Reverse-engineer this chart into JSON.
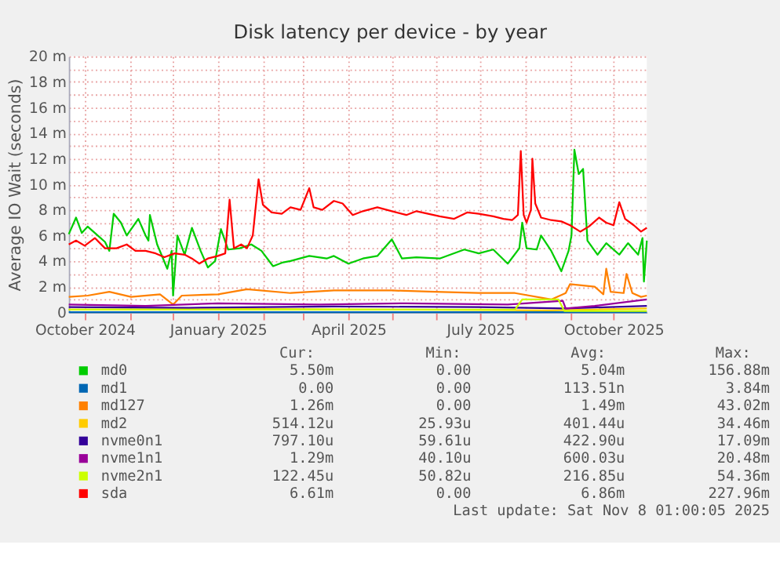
{
  "chart_data": {
    "type": "line",
    "title": "Disk latency per device - by year",
    "ylabel": "Average IO Wait (seconds)",
    "xlim": [
      "2024-09-20",
      "2025-10-24"
    ],
    "ylim": [
      0,
      20
    ],
    "xticks": [
      {
        "value": "2024-10",
        "label": "October 2024"
      },
      {
        "value": "2024-11",
        "label": null
      },
      {
        "value": "2024-12",
        "label": null
      },
      {
        "value": "2025-01",
        "label": "January 2025"
      },
      {
        "value": "2025-02",
        "label": null
      },
      {
        "value": "2025-03",
        "label": null
      },
      {
        "value": "2025-04",
        "label": "April 2025"
      },
      {
        "value": "2025-05",
        "label": null
      },
      {
        "value": "2025-06",
        "label": null
      },
      {
        "value": "2025-07",
        "label": "July 2025"
      },
      {
        "value": "2025-08",
        "label": null
      },
      {
        "value": "2025-09",
        "label": null
      },
      {
        "value": "2025-10",
        "label": "October 2025"
      }
    ],
    "yticks": [
      0,
      {
        "value": 1,
        "label": null
      },
      {
        "value": 2,
        "label": "2 m"
      },
      {
        "value": 3,
        "label": null
      },
      {
        "value": 4,
        "label": "4 m"
      },
      {
        "value": 5,
        "label": null
      },
      {
        "value": 6,
        "label": "6 m"
      },
      {
        "value": 7,
        "label": null
      },
      {
        "value": 8,
        "label": "8 m"
      },
      {
        "value": 9,
        "label": null
      },
      {
        "value": 10,
        "label": "10 m"
      },
      {
        "value": 11,
        "label": null
      },
      {
        "value": 12,
        "label": "12 m"
      },
      {
        "value": 13,
        "label": null
      },
      {
        "value": 14,
        "label": "14 m"
      },
      {
        "value": 15,
        "label": null
      },
      {
        "value": 16,
        "label": "16 m"
      },
      {
        "value": 17,
        "label": null
      },
      {
        "value": 18,
        "label": "18 m"
      },
      {
        "value": 19,
        "label": null
      },
      {
        "value": 20,
        "label": "20 m"
      }
    ],
    "grid": true,
    "legend": "bottom",
    "marker": "none",
    "line_style": "solid",
    "series": [
      {
        "name": "md0",
        "color": "#00cc00",
        "x": [
          "2024-09-20",
          "2024-09-25",
          "2024-09-29",
          "2024-10-03",
          "2024-10-10",
          "2024-10-15",
          "2024-10-18",
          "2024-10-21",
          "2024-10-26",
          "2024-10-30",
          "2024-11-07",
          "2024-11-12",
          "2024-11-14",
          "2024-11-15",
          "2024-11-20",
          "2024-11-27",
          "2024-11-30",
          "2024-12-01",
          "2024-12-04",
          "2024-12-09",
          "2024-12-14",
          "2024-12-20",
          "2024-12-25",
          "2024-12-30",
          "2025-01-03",
          "2025-01-08",
          "2025-01-16",
          "2025-01-24",
          "2025-01-31",
          "2025-02-08",
          "2025-02-15",
          "2025-02-20",
          "2025-03-05",
          "2025-03-17",
          "2025-03-22",
          "2025-04-01",
          "2025-04-11",
          "2025-04-21",
          "2025-05-01",
          "2025-05-08",
          "2025-05-18",
          "2025-06-03",
          "2025-06-20",
          "2025-06-30",
          "2025-07-10",
          "2025-07-20",
          "2025-07-28",
          "2025-07-30",
          "2025-08-02",
          "2025-08-09",
          "2025-08-12",
          "2025-08-19",
          "2025-08-26",
          "2025-08-31",
          "2025-09-02",
          "2025-09-04",
          "2025-09-07",
          "2025-09-10",
          "2025-09-13",
          "2025-09-20",
          "2025-09-26",
          "2025-10-05",
          "2025-10-11",
          "2025-10-18",
          "2025-10-21",
          "2025-10-22",
          "2025-10-24"
        ],
        "values": [
          6.1,
          7.4,
          6.2,
          6.7,
          6.0,
          5.5,
          4.8,
          7.7,
          7.0,
          6.0,
          7.3,
          6.0,
          5.6,
          7.6,
          5.3,
          3.4,
          4.8,
          1.3,
          6.0,
          4.5,
          6.6,
          4.8,
          3.5,
          4.0,
          6.5,
          4.9,
          5.0,
          5.3,
          4.8,
          3.6,
          3.9,
          4.0,
          4.4,
          4.2,
          4.4,
          3.8,
          4.2,
          4.4,
          5.7,
          4.2,
          4.3,
          4.2,
          4.9,
          4.6,
          4.9,
          3.8,
          5.0,
          7.0,
          5.0,
          4.9,
          6.0,
          4.8,
          3.2,
          4.8,
          6.0,
          12.7,
          10.8,
          11.2,
          5.6,
          4.5,
          5.4,
          4.5,
          5.4,
          4.5,
          5.8,
          2.4,
          5.6
        ]
      },
      {
        "name": "md1",
        "color": "#0066b3",
        "x": [
          "2024-09-20",
          "2025-10-24"
        ],
        "values": [
          0,
          0
        ]
      },
      {
        "name": "md127",
        "color": "#ff8000",
        "x": [
          "2024-09-20",
          "2024-10-03",
          "2024-10-18",
          "2024-11-02",
          "2024-11-22",
          "2024-12-01",
          "2024-12-07",
          "2025-01-01",
          "2025-01-21",
          "2025-02-20",
          "2025-03-22",
          "2025-05-01",
          "2025-05-31",
          "2025-06-30",
          "2025-07-25",
          "2025-08-19",
          "2025-08-29",
          "2025-09-01",
          "2025-09-18",
          "2025-09-24",
          "2025-09-26",
          "2025-09-29",
          "2025-10-08",
          "2025-10-10",
          "2025-10-14",
          "2025-10-20",
          "2025-10-24"
        ],
        "values": [
          1.2,
          1.3,
          1.6,
          1.2,
          1.4,
          0.6,
          1.3,
          1.4,
          1.8,
          1.5,
          1.7,
          1.7,
          1.6,
          1.5,
          1.5,
          1.0,
          1.5,
          2.2,
          2.0,
          1.4,
          3.4,
          1.6,
          1.5,
          3.0,
          1.5,
          1.2,
          1.3
        ]
      },
      {
        "name": "md2",
        "color": "#ffcc00",
        "x": [
          "2024-09-20",
          "2025-01-31",
          "2025-05-11",
          "2025-08-19",
          "2025-10-24"
        ],
        "values": [
          0.2,
          0.25,
          0.2,
          0.15,
          0.3
        ]
      },
      {
        "name": "nvme0n1",
        "color": "#330099",
        "x": [
          "2024-09-20",
          "2024-12-12",
          "2025-03-22",
          "2025-06-30",
          "2025-08-29",
          "2025-10-24"
        ],
        "values": [
          0.4,
          0.35,
          0.45,
          0.4,
          0.3,
          0.5
        ]
      },
      {
        "name": "nvme1n1",
        "color": "#990099",
        "x": [
          "2024-09-20",
          "2024-11-12",
          "2025-01-01",
          "2025-03-12",
          "2025-05-11",
          "2025-07-20",
          "2025-08-27",
          "2025-08-29",
          "2025-09-18",
          "2025-10-24"
        ],
        "values": [
          0.6,
          0.5,
          0.7,
          0.6,
          0.7,
          0.6,
          0.9,
          0.3,
          0.5,
          1.0
        ]
      },
      {
        "name": "nvme2n1",
        "color": "#ccff00",
        "x": [
          "2024-09-20",
          "2025-07-25",
          "2025-07-30",
          "2025-08-24",
          "2025-08-28",
          "2025-10-24"
        ],
        "values": [
          0.2,
          0.2,
          1.0,
          1.0,
          0.1,
          0.1
        ]
      },
      {
        "name": "sda",
        "color": "#ff0000",
        "x": [
          "2024-09-20",
          "2024-09-25",
          "2024-10-01",
          "2024-10-08",
          "2024-10-15",
          "2024-10-23",
          "2024-10-30",
          "2024-11-05",
          "2024-11-12",
          "2024-11-19",
          "2024-11-25",
          "2024-12-02",
          "2024-12-09",
          "2024-12-14",
          "2024-12-19",
          "2024-12-25",
          "2025-01-01",
          "2025-01-06",
          "2025-01-09",
          "2025-01-12",
          "2025-01-17",
          "2025-01-21",
          "2025-01-25",
          "2025-01-29",
          "2025-02-01",
          "2025-02-07",
          "2025-02-14",
          "2025-02-20",
          "2025-02-27",
          "2025-03-05",
          "2025-03-08",
          "2025-03-14",
          "2025-03-22",
          "2025-03-28",
          "2025-04-04",
          "2025-04-11",
          "2025-04-21",
          "2025-05-01",
          "2025-05-11",
          "2025-05-18",
          "2025-05-26",
          "2025-06-03",
          "2025-06-13",
          "2025-06-22",
          "2025-06-30",
          "2025-07-10",
          "2025-07-17",
          "2025-07-23",
          "2025-07-27",
          "2025-07-29",
          "2025-07-31",
          "2025-08-02",
          "2025-08-05",
          "2025-08-06",
          "2025-08-08",
          "2025-08-12",
          "2025-08-19",
          "2025-08-26",
          "2025-09-01",
          "2025-09-08",
          "2025-09-14",
          "2025-09-21",
          "2025-09-26",
          "2025-10-01",
          "2025-10-05",
          "2025-10-09",
          "2025-10-15",
          "2025-10-20",
          "2025-10-24"
        ],
        "values": [
          5.3,
          5.6,
          5.2,
          5.8,
          5.0,
          5.0,
          5.3,
          4.8,
          4.8,
          4.6,
          4.3,
          4.6,
          4.5,
          4.2,
          3.8,
          4.2,
          4.4,
          4.6,
          8.8,
          5.0,
          5.3,
          5.0,
          6.0,
          10.4,
          8.4,
          7.8,
          7.7,
          8.2,
          8.0,
          9.7,
          8.2,
          8.0,
          8.7,
          8.5,
          7.6,
          7.9,
          8.2,
          7.9,
          7.6,
          7.9,
          7.7,
          7.5,
          7.3,
          7.8,
          7.7,
          7.5,
          7.3,
          7.2,
          7.6,
          12.6,
          7.6,
          7.0,
          8.0,
          12.0,
          8.5,
          7.4,
          7.2,
          7.1,
          6.8,
          6.3,
          6.7,
          7.4,
          7.0,
          6.8,
          8.6,
          7.3,
          6.8,
          6.3,
          6.6
        ]
      }
    ],
    "annotations": [
      "Cur:",
      "Min:",
      "Avg:",
      "Max:",
      "5.50m",
      "0.00",
      "5.04m",
      "156.88m",
      "0.00",
      "0.00",
      "113.51n",
      "3.84m",
      "1.26m",
      "0.00",
      "1.49m",
      "43.02m",
      "514.12u",
      "25.93u",
      "401.44u",
      "34.46m",
      "797.10u",
      "59.61u",
      "422.90u",
      "17.09m",
      "1.29m",
      "40.10u",
      "600.03u",
      "20.48m",
      "122.45u",
      "50.82u",
      "216.85u",
      "54.36m",
      "6.61m",
      "0.00",
      "6.86m",
      "227.96m",
      "Last update: Sat Nov  8 01:00:05 2025"
    ]
  }
}
